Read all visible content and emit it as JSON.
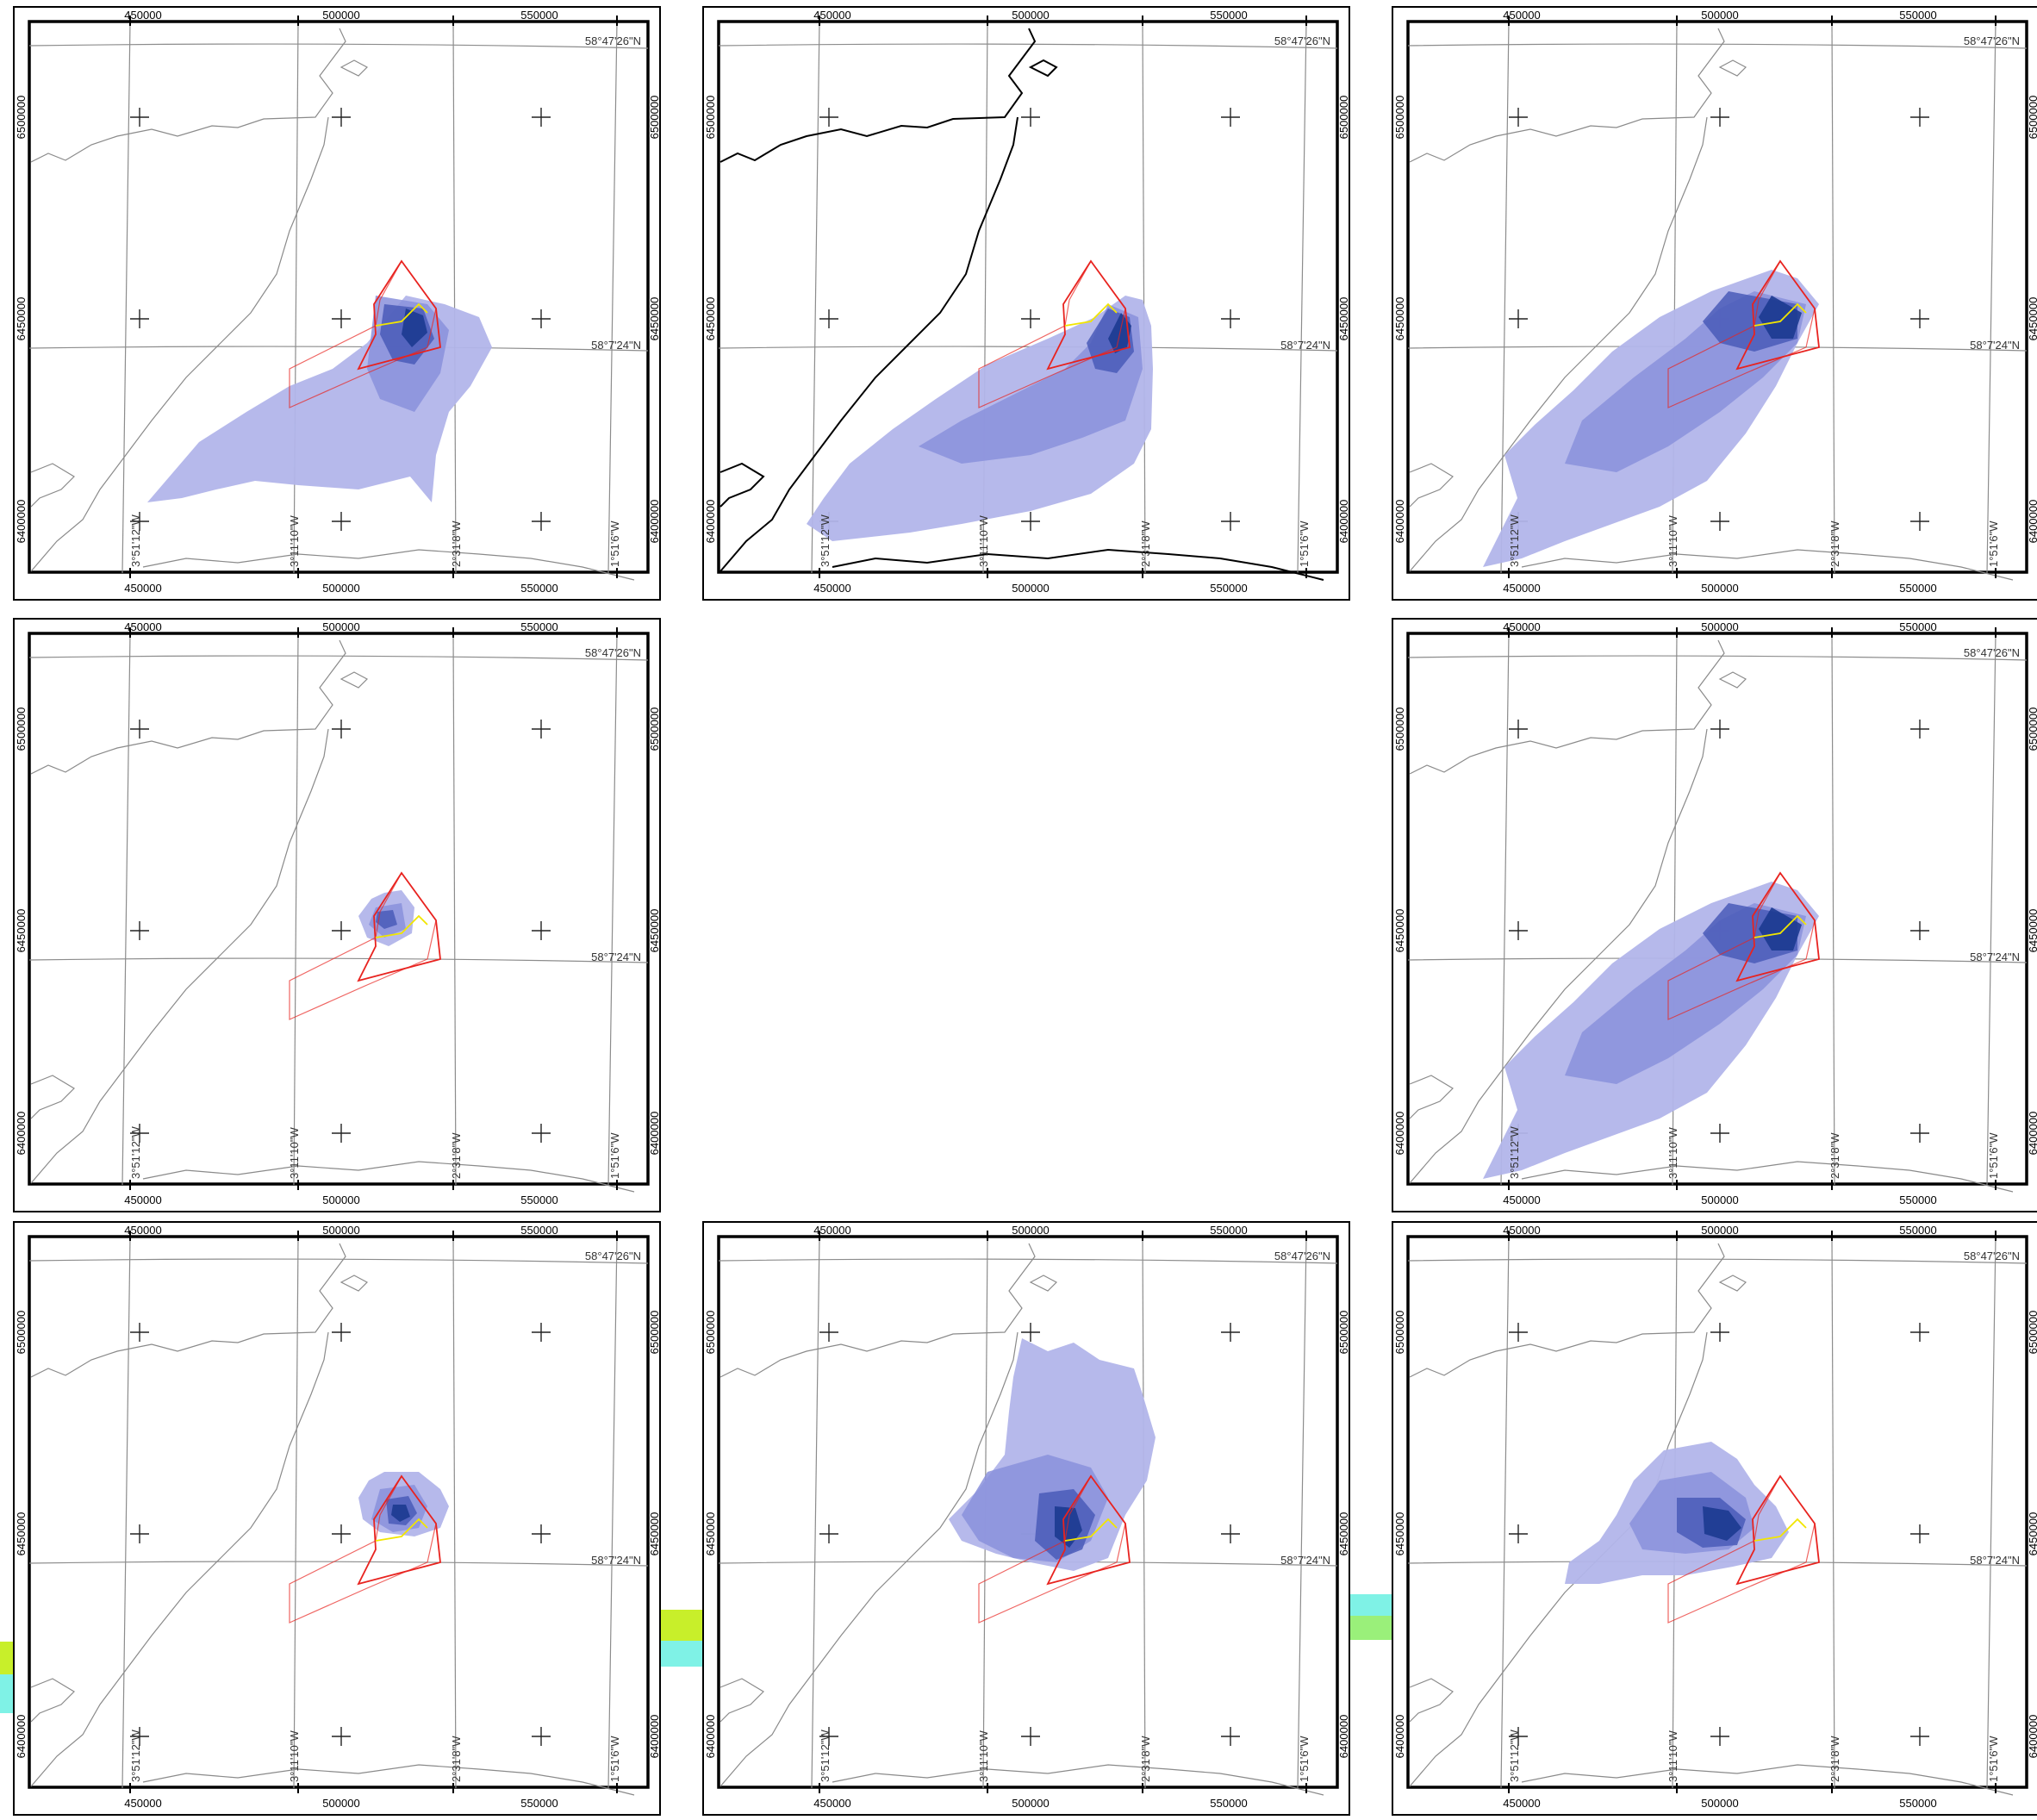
{
  "map_labels": {
    "easting_ticks": [
      "450000",
      "500000",
      "550000"
    ],
    "northing_ticks": [
      "6500000",
      "6450000",
      "6400000"
    ],
    "lat_top": "58°47'26\"N",
    "lat_mid": "58°7'24\"N",
    "lon_labels": [
      "3°51'12\"W",
      "3°11'10\"W",
      "2°31'8\"W",
      "1°51'6\"W"
    ]
  },
  "colors": {
    "plume_light": "#b2b5ea",
    "plume_mid": "#8a90dc",
    "plume_dark": "#4a5ab8",
    "plume_core": "#1c3a90",
    "zone_outline": "#e8231f",
    "cable_route": "#f2e600",
    "coast": "#8a8a8a",
    "coast_dark": "#000000",
    "grid": "#8c8c8c",
    "frame": "#000000"
  },
  "panels": [
    {
      "id": "r1c1",
      "plume": "large-southwest"
    },
    {
      "id": "r1c2",
      "plume": "broad-southwest",
      "dark_coast": true
    },
    {
      "id": "r1c3",
      "plume": "elongated-southwest"
    },
    {
      "id": "r2c1",
      "plume": "small-local"
    },
    {
      "id": "r2c2",
      "plume": "none"
    },
    {
      "id": "r2c3",
      "plume": "elongated-southwest"
    },
    {
      "id": "r3c1",
      "plume": "compact-local"
    },
    {
      "id": "r3c2",
      "plume": "northward"
    },
    {
      "id": "r3c3",
      "plume": "westward"
    }
  ]
}
